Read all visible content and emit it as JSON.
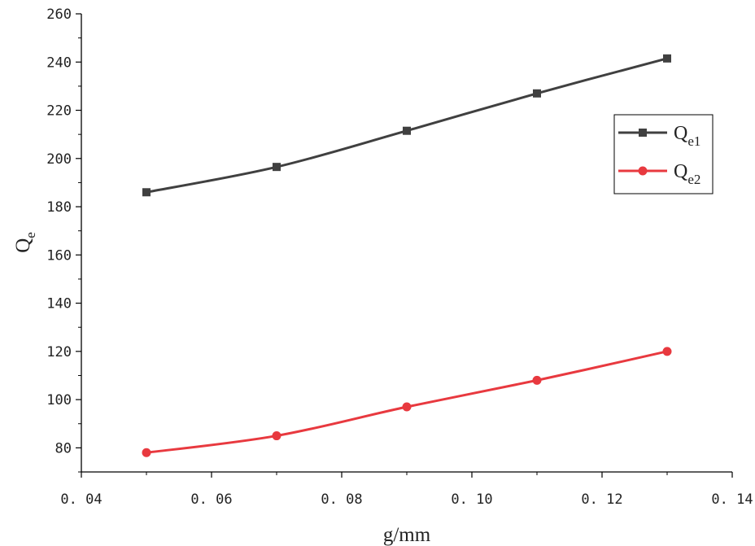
{
  "chart_data": {
    "type": "line",
    "xlabel": "g/mm",
    "ylabel": {
      "main": "Q",
      "sub": "e"
    },
    "xlim": [
      0.04,
      0.14
    ],
    "ylim": [
      70,
      260
    ],
    "x_ticks": [
      0.04,
      0.06,
      0.08,
      0.1,
      0.12,
      0.14
    ],
    "x_tick_labels": [
      "0. 04",
      "0. 06",
      "0. 08",
      "0. 10",
      "0. 12",
      "0. 14"
    ],
    "y_ticks": [
      80,
      100,
      120,
      140,
      160,
      180,
      200,
      220,
      240,
      260
    ],
    "y_tick_labels": [
      "80",
      "100",
      "120",
      "140",
      "160",
      "180",
      "200",
      "220",
      "240",
      "260"
    ],
    "grid": false,
    "legend_position": "right",
    "x": [
      0.05,
      0.07,
      0.09,
      0.11,
      0.13
    ],
    "series": [
      {
        "name": "Qe1",
        "label_main": "Q",
        "label_sub": "e1",
        "marker": "square",
        "color": "#404040",
        "values": [
          186,
          196.5,
          211.5,
          227,
          241.5
        ]
      },
      {
        "name": "Qe2",
        "label_main": "Q",
        "label_sub": "e2",
        "marker": "circle",
        "color": "#e8393f",
        "values": [
          78,
          85,
          97,
          108,
          120
        ]
      }
    ]
  }
}
